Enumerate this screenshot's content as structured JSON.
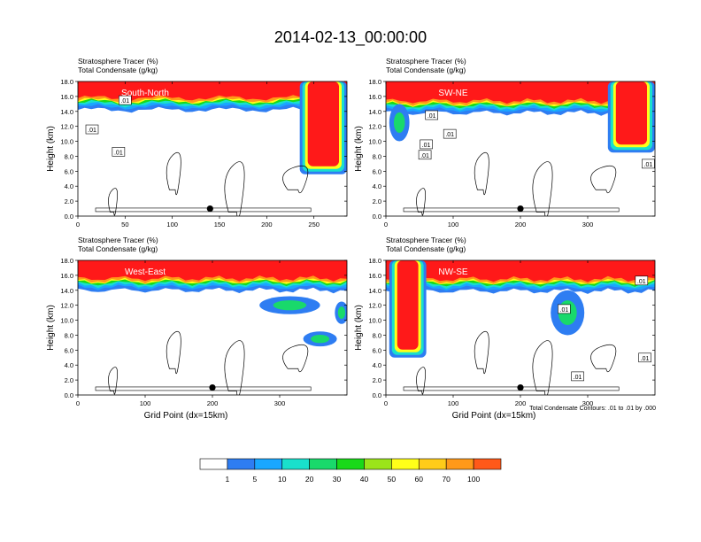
{
  "title": "2014-02-13_00:00:00",
  "subtitle_left": "Stratosphere Tracer   (%)",
  "subtitle_left2": "Total Condensate   (g/kg)",
  "ylabel": "Height (km)",
  "xlabel": "Grid Point (dx=15km)",
  "contour_note": "Total Condensate Contours: .01 to .01 by .000",
  "colors": {
    "levels": [
      "#ffffff",
      "#2e7df2",
      "#19a7ff",
      "#19e0cc",
      "#19d96b",
      "#19d919",
      "#9be41a",
      "#ffff19",
      "#ffcc19",
      "#ff9919",
      "#ff5919",
      "#ff1919"
    ],
    "contour": "#000000",
    "marker": "#000000"
  },
  "chart_data": [
    {
      "type": "heatmap",
      "panel_label": "South-North",
      "title_lines": [
        "Stratosphere Tracer   (%)",
        "Total Condensate   (g/kg)"
      ],
      "ylabel": "Height (km)",
      "xlabel": "",
      "xlim": [
        0,
        285
      ],
      "ylim": [
        0,
        18
      ],
      "xticks": [
        0,
        50,
        100,
        150,
        200,
        250
      ],
      "xtick_labels": [
        "0",
        "50",
        "100",
        "150",
        "200",
        "250"
      ],
      "yticks": [
        0,
        2,
        4,
        6,
        8,
        10,
        12,
        14,
        16,
        18
      ],
      "ytick_labels": [
        "0.0",
        "2.0",
        "4.0",
        "6.0",
        "8.0",
        "10.0",
        "12.0",
        "14.0",
        "16.0",
        "18.0"
      ],
      "tropopause_km": 15.6,
      "intrusions": [
        {
          "x0": 235,
          "x1": 285,
          "bottom_km": 5.6
        }
      ],
      "blobs": [],
      "contour_labels": [
        {
          "text": ".01",
          "x": 50,
          "y": 15.5
        },
        {
          "text": ".01",
          "x": 15,
          "y": 11.6
        },
        {
          "text": ".01",
          "x": 43,
          "y": 8.6
        }
      ],
      "marker": {
        "x": 140,
        "y": 1.0
      }
    },
    {
      "type": "heatmap",
      "panel_label": "SW-NE",
      "title_lines": [
        "Stratosphere Tracer   (%)",
        "Total Condensate   (g/kg)"
      ],
      "ylabel": "Height (km)",
      "xlabel": "",
      "xlim": [
        0,
        400
      ],
      "ylim": [
        0,
        18
      ],
      "xticks": [
        0,
        100,
        200,
        300
      ],
      "xtick_labels": [
        "0",
        "100",
        "200",
        "300"
      ],
      "yticks": [
        0,
        2,
        4,
        6,
        8,
        10,
        12,
        14,
        16,
        18
      ],
      "ytick_labels": [
        "0.0",
        "2.0",
        "4.0",
        "6.0",
        "8.0",
        "10.0",
        "12.0",
        "14.0",
        "16.0",
        "18.0"
      ],
      "tropopause_km": 15.2,
      "intrusions": [
        {
          "x0": 330,
          "x1": 400,
          "bottom_km": 8.5
        }
      ],
      "blobs": [
        {
          "x": 20,
          "y": 12.5,
          "rx": 15,
          "ry": 2.5
        }
      ],
      "contour_labels": [
        {
          "text": ".01",
          "x": 68,
          "y": 13.5
        },
        {
          "text": ".01",
          "x": 95,
          "y": 11.0
        },
        {
          "text": ".01",
          "x": 60,
          "y": 9.6
        },
        {
          "text": ".01",
          "x": 58,
          "y": 8.2
        },
        {
          "text": ".01",
          "x": 390,
          "y": 7.0
        }
      ],
      "marker": {
        "x": 200,
        "y": 1.0
      }
    },
    {
      "type": "heatmap",
      "panel_label": "West-East",
      "title_lines": [
        "Stratosphere Tracer   (%)",
        "Total Condensate   (g/kg)"
      ],
      "ylabel": "Height (km)",
      "xlabel": "Grid Point (dx=15km)",
      "xlim": [
        0,
        400
      ],
      "ylim": [
        0,
        18
      ],
      "xticks": [
        0,
        100,
        200,
        300
      ],
      "xtick_labels": [
        "0",
        "100",
        "200",
        "300"
      ],
      "yticks": [
        0,
        2,
        4,
        6,
        8,
        10,
        12,
        14,
        16,
        18
      ],
      "ytick_labels": [
        "0.0",
        "2.0",
        "4.0",
        "6.0",
        "8.0",
        "10.0",
        "12.0",
        "14.0",
        "16.0",
        "18.0"
      ],
      "tropopause_km": 15.4,
      "intrusions": [],
      "blobs": [
        {
          "x": 315,
          "y": 12.0,
          "rx": 45,
          "ry": 1.2
        },
        {
          "x": 360,
          "y": 7.5,
          "rx": 25,
          "ry": 1.0
        },
        {
          "x": 392,
          "y": 11.0,
          "rx": 10,
          "ry": 1.5
        }
      ],
      "contour_labels": [],
      "marker": {
        "x": 200,
        "y": 1.0
      }
    },
    {
      "type": "heatmap",
      "panel_label": "NW-SE",
      "title_lines": [
        "Stratosphere Tracer   (%)",
        "Total Condensate   (g/kg)"
      ],
      "ylabel": "Height (km)",
      "xlabel": "Grid Point (dx=15km)",
      "xlim": [
        0,
        400
      ],
      "ylim": [
        0,
        18
      ],
      "xticks": [
        0,
        100,
        200,
        300
      ],
      "xtick_labels": [
        "0",
        "100",
        "200",
        "300"
      ],
      "yticks": [
        0,
        2,
        4,
        6,
        8,
        10,
        12,
        14,
        16,
        18
      ],
      "ytick_labels": [
        "0.0",
        "2.0",
        "4.0",
        "6.0",
        "8.0",
        "10.0",
        "12.0",
        "14.0",
        "16.0",
        "18.0"
      ],
      "tropopause_km": 15.3,
      "intrusions": [
        {
          "x0": 5,
          "x1": 60,
          "bottom_km": 5.0
        }
      ],
      "blobs": [
        {
          "x": 270,
          "y": 11.0,
          "rx": 25,
          "ry": 3.0
        }
      ],
      "contour_labels": [
        {
          "text": ".01",
          "x": 265,
          "y": 11.5
        },
        {
          "text": ".01",
          "x": 285,
          "y": 2.5
        },
        {
          "text": ".01",
          "x": 380,
          "y": 15.3
        },
        {
          "text": ".01",
          "x": 385,
          "y": 5.0
        }
      ],
      "marker": {
        "x": 200,
        "y": 1.0
      }
    }
  ],
  "colorbar": {
    "labels": [
      "1",
      "5",
      "10",
      "20",
      "30",
      "40",
      "50",
      "60",
      "70",
      "100"
    ]
  }
}
